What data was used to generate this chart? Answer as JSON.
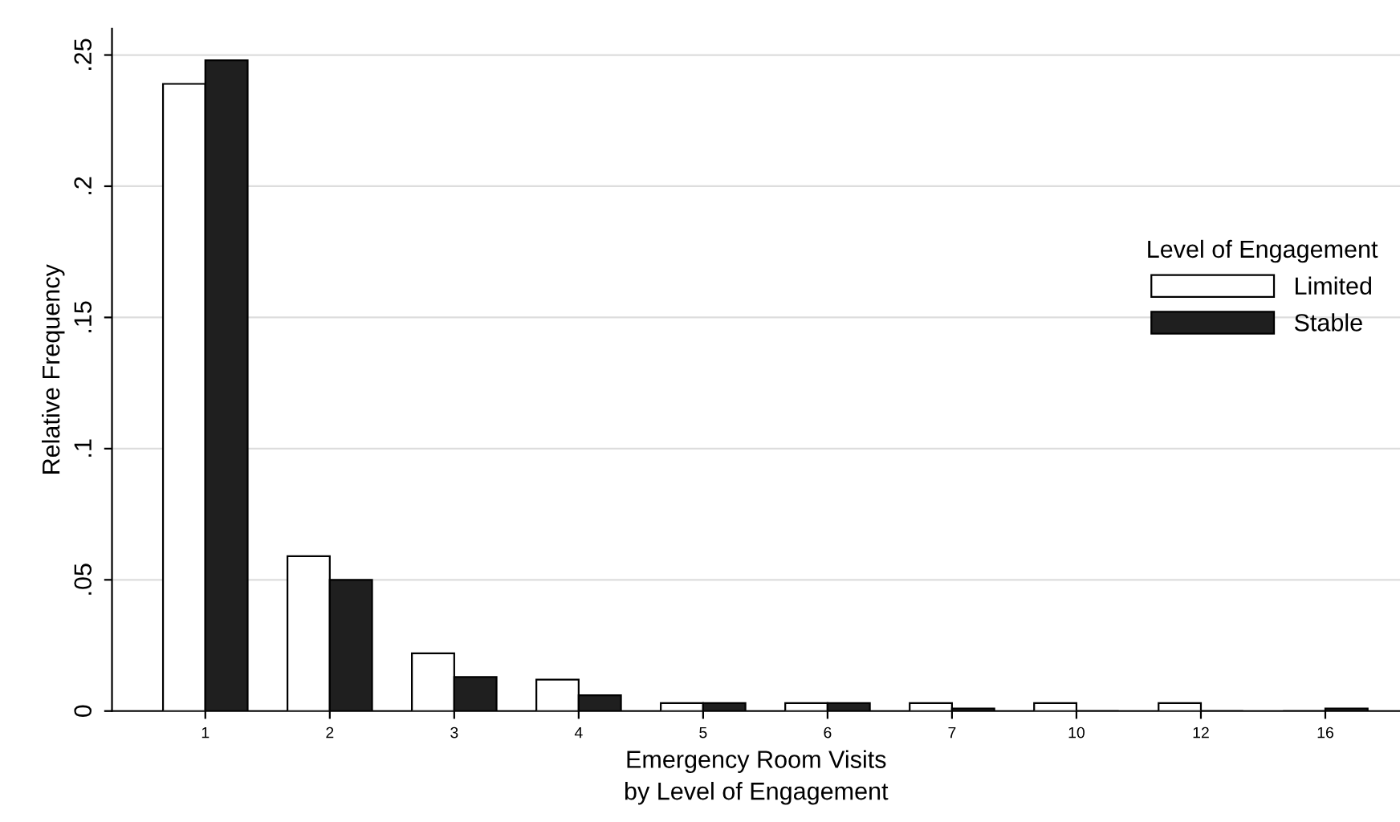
{
  "chart_data": {
    "type": "bar",
    "xlabel": "Emergency Room Visits\nby Level of Engagement",
    "ylabel": "Relative Frequency",
    "categories": [
      "1",
      "2",
      "3",
      "4",
      "5",
      "6",
      "7",
      "10",
      "12",
      "16"
    ],
    "series": [
      {
        "name": "Limited",
        "color": "#ffffff",
        "values": [
          0.239,
          0.059,
          0.022,
          0.012,
          0.003,
          0.003,
          0.003,
          0.003,
          0.003,
          0
        ]
      },
      {
        "name": "Stable",
        "color": "#1f1f1f",
        "values": [
          0.248,
          0.05,
          0.013,
          0.006,
          0.003,
          0.003,
          0.001,
          0,
          0,
          0.001
        ]
      }
    ],
    "legend_title": "Level of Engagement",
    "legend": "right",
    "ylim": [
      0,
      0.26
    ],
    "yticks": [
      {
        "value": 0,
        "label": "0"
      },
      {
        "value": 0.05,
        "label": ".05"
      },
      {
        "value": 0.1,
        "label": ".1"
      },
      {
        "value": 0.15,
        "label": ".15"
      },
      {
        "value": 0.2,
        "label": ".2"
      },
      {
        "value": 0.25,
        "label": ".25"
      }
    ],
    "grid": "y"
  }
}
